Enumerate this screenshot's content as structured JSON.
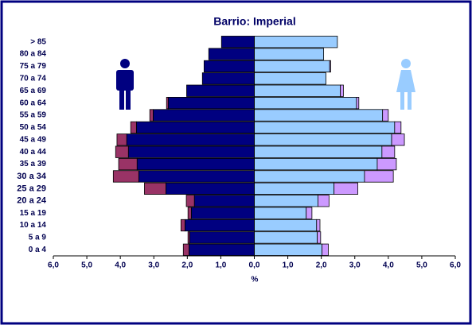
{
  "chart_data": {
    "type": "bar",
    "title": "Barrio: Imperial",
    "x_label": "%",
    "categories": [
      "> 85",
      "80 a 84",
      "75 a 79",
      "70 a 74",
      "65 a 69",
      "60 a 64",
      "55 a 59",
      "50 a 54",
      "45 a 49",
      "40 a 44",
      "35 a 39",
      "30 a 34",
      "25 a 29",
      "20 a 24",
      "15 a 19",
      "10 a 14",
      "5 a 9",
      "0 a 4"
    ],
    "series": [
      {
        "color": "#000080",
        "values": [
          -0.98,
          -1.36,
          -1.5,
          -1.55,
          -2.02,
          -2.57,
          -3.02,
          -3.52,
          -3.81,
          -3.76,
          -3.5,
          -3.45,
          -2.64,
          -1.79,
          -1.88,
          -2.07,
          -1.93,
          -1.95
        ]
      },
      {
        "color": "#993366",
        "values": [
          0,
          0,
          0,
          0,
          0,
          -0.05,
          -0.1,
          -0.17,
          -0.29,
          -0.38,
          -0.55,
          -0.76,
          -0.64,
          -0.24,
          -0.1,
          -0.12,
          -0.05,
          -0.17
        ]
      },
      {
        "color": "#99ccff",
        "values": [
          2.48,
          2.07,
          2.25,
          2.14,
          2.57,
          3.05,
          3.83,
          4.19,
          4.1,
          3.81,
          3.67,
          3.29,
          2.38,
          1.9,
          1.55,
          1.86,
          1.88,
          2.02
        ]
      },
      {
        "color": "#cc99ff",
        "values": [
          0,
          0,
          0.03,
          0,
          0.09,
          0.07,
          0.17,
          0.19,
          0.38,
          0.38,
          0.57,
          0.86,
          0.71,
          0.33,
          0.17,
          0.1,
          0.1,
          0.19
        ]
      }
    ],
    "xlim": [
      -6,
      6
    ],
    "xticks": [
      {
        "value": -6,
        "label": "6,0"
      },
      {
        "value": -5,
        "label": "5,0"
      },
      {
        "value": -4,
        "label": "4,0"
      },
      {
        "value": -3,
        "label": "3,0"
      },
      {
        "value": -2,
        "label": "2,0"
      },
      {
        "value": -1,
        "label": "1,0"
      },
      {
        "value": 0,
        "label": "0,0"
      },
      {
        "value": 1,
        "label": "1,0"
      },
      {
        "value": 2,
        "label": "2,0"
      },
      {
        "value": 3,
        "label": "3,0"
      },
      {
        "value": 4,
        "label": "4,0"
      },
      {
        "value": 5,
        "label": "5,0"
      },
      {
        "value": 6,
        "label": "6,0"
      }
    ],
    "grid": false
  }
}
